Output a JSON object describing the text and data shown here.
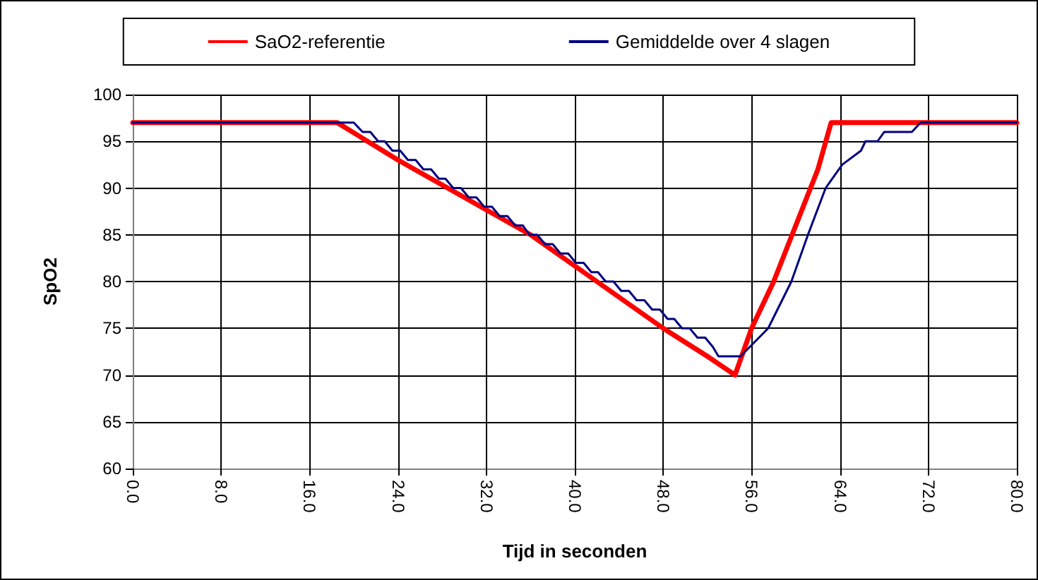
{
  "chart_data": {
    "type": "line",
    "xlabel": "Tijd in seconden",
    "ylabel": "SpO2",
    "xlim": [
      0,
      80
    ],
    "xticks": [
      {
        "value": 0,
        "label": "0.0"
      },
      {
        "value": 8,
        "label": "8.0"
      },
      {
        "value": 16,
        "label": "16.0"
      },
      {
        "value": 24,
        "label": "24.0"
      },
      {
        "value": 32,
        "label": "32.0"
      },
      {
        "value": 40,
        "label": "40.0"
      },
      {
        "value": 48,
        "label": "48.0"
      },
      {
        "value": 56,
        "label": "56.0"
      },
      {
        "value": 64,
        "label": "64.0"
      },
      {
        "value": 72,
        "label": "72.0"
      },
      {
        "value": 80,
        "label": "80.0"
      }
    ],
    "ylim": [
      60,
      100
    ],
    "yticks": [
      60,
      65,
      70,
      75,
      80,
      85,
      90,
      95,
      100
    ],
    "grid": true,
    "legend": "top",
    "marker": "none",
    "line_style": "solid",
    "series": [
      {
        "name": "SaO2-referentie",
        "color": "#ff0000",
        "x": [
          0,
          18.5,
          24,
          30,
          36,
          42,
          48,
          52,
          54.5,
          56,
          58,
          60,
          62,
          63.2,
          80
        ],
        "values": [
          97,
          97,
          93,
          89,
          85,
          80,
          75,
          72,
          70,
          75,
          80,
          86,
          92,
          97,
          97
        ]
      },
      {
        "name": "Gemiddelde over 4 slagen",
        "color": "#000080",
        "x": [
          0,
          20,
          20.8,
          21.5,
          22.2,
          22.8,
          23.5,
          24.2,
          24.9,
          25.6,
          26.3,
          27,
          27.7,
          28.3,
          29,
          29.7,
          30.4,
          31.1,
          31.8,
          32.5,
          33.2,
          33.9,
          34.6,
          35.3,
          35.9,
          36.6,
          37.3,
          38,
          38.7,
          39.4,
          40.1,
          40.8,
          41.5,
          42.1,
          42.8,
          43.5,
          44.2,
          44.9,
          45.6,
          46.3,
          47,
          47.7,
          48.4,
          49,
          49.7,
          50.4,
          51.1,
          51.8,
          52.5,
          53,
          55,
          57.5,
          59.6,
          61.1,
          62.7,
          64.2,
          65.9,
          66.3,
          67.4,
          68,
          70.5,
          71.3,
          80
        ],
        "values": [
          97,
          97,
          96,
          96,
          95,
          95,
          94,
          94,
          93,
          93,
          92,
          92,
          91,
          91,
          90,
          90,
          89,
          89,
          88,
          88,
          87,
          87,
          86,
          86,
          85,
          85,
          84,
          84,
          83,
          83,
          82,
          82,
          81,
          81,
          80,
          80,
          79,
          79,
          78,
          78,
          77,
          77,
          76,
          76,
          75,
          75,
          74,
          74,
          73,
          72,
          72,
          75,
          80,
          85,
          90,
          92.5,
          94,
          95,
          95,
          96,
          96,
          97,
          97
        ]
      }
    ]
  }
}
